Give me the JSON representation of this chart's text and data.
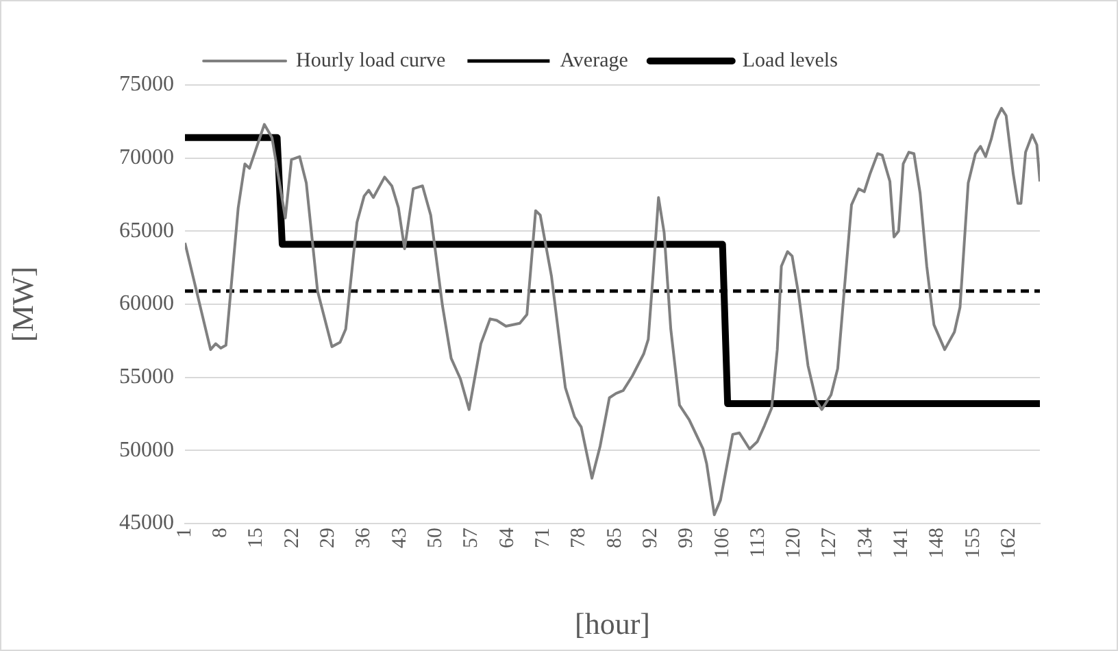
{
  "chart_data": {
    "type": "line",
    "xlabel": "[hour]",
    "ylabel": "[MW]",
    "xlim": [
      1,
      168
    ],
    "xticks": [
      1,
      8,
      15,
      22,
      29,
      36,
      43,
      50,
      57,
      64,
      71,
      78,
      85,
      92,
      99,
      106,
      113,
      120,
      127,
      134,
      141,
      148,
      155,
      162
    ],
    "ylim": [
      45000,
      75000
    ],
    "yticks": [
      45000,
      50000,
      55000,
      60000,
      65000,
      70000,
      75000
    ],
    "grid": "y",
    "legend": "top",
    "marker": "none",
    "series": [
      {
        "name": "Hourly load curve",
        "color": "#808080",
        "x": [
          1,
          6,
          7,
          8,
          9,
          11.4,
          12.7,
          13.6,
          16.5,
          18,
          20.6,
          21.8,
          23.4,
          24.7,
          26.9,
          29.7,
          31.3,
          32.4,
          34.6,
          36,
          36.9,
          37.8,
          40,
          41.4,
          42.7,
          43.9,
          45.6,
          47.4,
          49,
          51.3,
          53,
          54.8,
          56.5,
          58.8,
          60.6,
          61.9,
          63.7,
          66.4,
          67.8,
          69.5,
          70.4,
          72.6,
          75.3,
          77.1,
          78.4,
          80.5,
          82.1,
          83.9,
          85.2,
          86.6,
          88.4,
          90.6,
          91.5,
          92.5,
          93.5,
          94.6,
          95.9,
          97.6,
          99.5,
          102.2,
          102.9,
          104.4,
          105.6,
          108,
          109.3,
          111.3,
          112.8,
          114.2,
          115.6,
          116.7,
          117.5,
          118.7,
          119.6,
          120.9,
          122.7,
          124.3,
          125.4,
          127.2,
          128.5,
          129.7,
          131.2,
          132.6,
          133.7,
          134.8,
          136.3,
          137.2,
          138.7,
          139.5,
          140.4,
          141.3,
          142.4,
          143.4,
          144.6,
          145.9,
          147.3,
          149.4,
          151.3,
          152.4,
          154,
          155.4,
          156.4,
          157.4,
          158.5,
          159.4,
          160.5,
          161.4,
          162.8,
          163.7,
          164.3,
          165.2,
          166.5,
          167.4,
          168
        ],
        "values": [
          64200,
          56900,
          57300,
          57000,
          57200,
          66600,
          69600,
          69300,
          72300,
          71400,
          65900,
          69900,
          70100,
          68300,
          60900,
          57100,
          57400,
          58300,
          65600,
          67400,
          67800,
          67300,
          68700,
          68100,
          66600,
          63800,
          67900,
          68100,
          66100,
          59900,
          56300,
          54900,
          52800,
          57300,
          59000,
          58900,
          58500,
          58700,
          59300,
          66400,
          66100,
          61900,
          54300,
          52300,
          51600,
          48100,
          50300,
          53600,
          53900,
          54100,
          55100,
          56600,
          57600,
          62300,
          67300,
          64900,
          58300,
          53100,
          52100,
          50100,
          49100,
          45600,
          46600,
          51100,
          51200,
          50100,
          50600,
          51700,
          52900,
          56900,
          62600,
          63600,
          63300,
          60600,
          55800,
          53400,
          52800,
          53800,
          55600,
          60600,
          66800,
          67900,
          67700,
          68900,
          70300,
          70200,
          68400,
          64600,
          65000,
          69600,
          70400,
          70300,
          67600,
          62600,
          58600,
          56900,
          58100,
          59800,
          68300,
          70300,
          70800,
          70100,
          71300,
          72600,
          73400,
          72900,
          68900,
          66900,
          66900,
          70400,
          71600,
          70900,
          68400
        ]
      },
      {
        "name": "Average",
        "color": "#000000",
        "line_style": "dashed",
        "x": [
          1,
          168
        ],
        "values": [
          60900,
          60900
        ]
      },
      {
        "name": "Load levels",
        "color": "#000000",
        "x": [
          1,
          19,
          20,
          106,
          107,
          168
        ],
        "values": [
          71400,
          71400,
          64100,
          64100,
          53200,
          53200
        ]
      }
    ]
  }
}
